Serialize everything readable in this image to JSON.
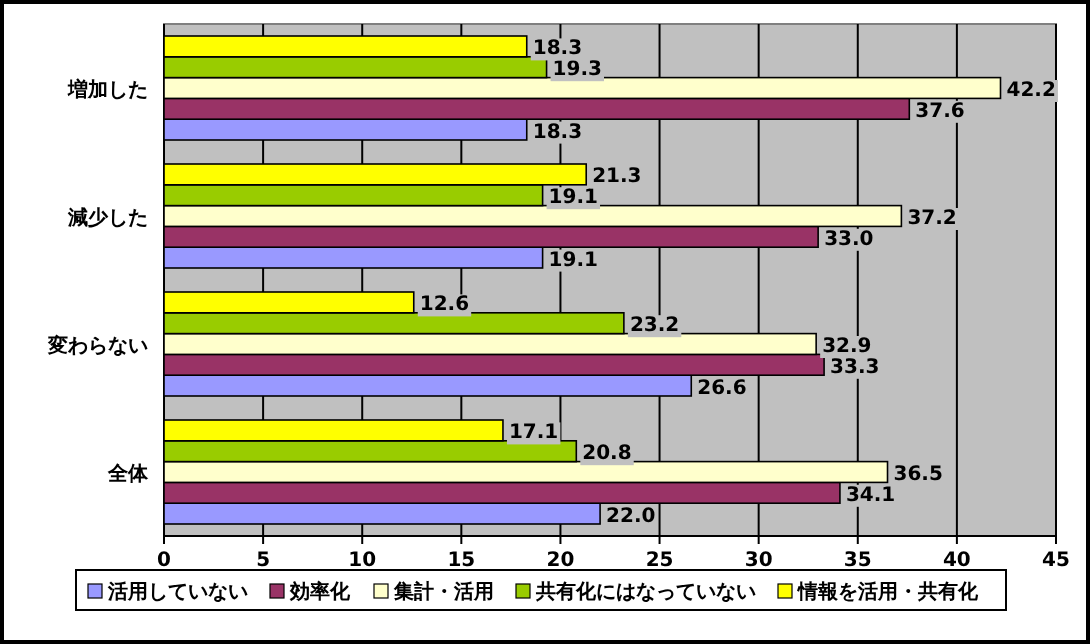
{
  "chart_data": {
    "type": "bar",
    "orientation": "horizontal",
    "categories": [
      "増加した",
      "減少した",
      "変わらない",
      "全体"
    ],
    "series": [
      {
        "name": "活用していない",
        "color": "#9999ff",
        "values": [
          18.3,
          19.1,
          26.6,
          22.0
        ],
        "value_labels": [
          "18.3",
          "19.1",
          "26.6",
          "22.0"
        ]
      },
      {
        "name": "効率化",
        "color": "#993366",
        "values": [
          37.6,
          33.0,
          33.3,
          34.1
        ],
        "value_labels": [
          "37.6",
          "33.0",
          "33.3",
          "34.1"
        ]
      },
      {
        "name": "集計・活用",
        "color": "#ffffcc",
        "values": [
          42.2,
          37.2,
          32.9,
          36.5
        ],
        "value_labels": [
          "42.2",
          "37.2",
          "32.9",
          "36.5"
        ]
      },
      {
        "name": "共有化にはなっていない",
        "color": "#99cc00",
        "values": [
          19.3,
          19.1,
          23.2,
          20.8
        ],
        "value_labels": [
          "19.3",
          "19.1",
          "23.2",
          "20.8"
        ]
      },
      {
        "name": "情報を活用・共有化",
        "color": "#ffff00",
        "values": [
          18.3,
          21.3,
          12.6,
          17.1
        ],
        "value_labels": [
          "18.3",
          "21.3",
          "12.6",
          "17.1"
        ]
      }
    ],
    "xlim": [
      0,
      45
    ],
    "xticks": [
      0,
      5,
      10,
      15,
      20,
      25,
      30,
      35,
      40,
      45
    ],
    "grid": "x",
    "legend": "bottom"
  }
}
